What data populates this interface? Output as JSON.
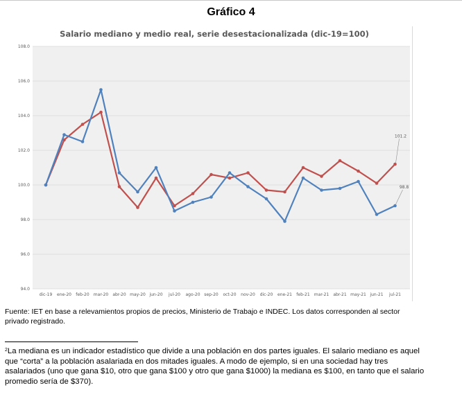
{
  "page_title": "Gráfico 4",
  "chart_data": {
    "type": "line",
    "title": "Salario mediano y medio real, serie desestacionalizada (dic-19=100)",
    "xlabel": "",
    "ylabel": "",
    "categories": [
      "dic-19",
      "ene-20",
      "feb-20",
      "mar-20",
      "abr-20",
      "may-20",
      "jun-20",
      "jul-20",
      "ago-20",
      "sep-20",
      "oct-20",
      "nov-20",
      "dic-20",
      "ene-21",
      "feb-21",
      "mar-21",
      "abr-21",
      "may-21",
      "jun-21",
      "jul-21"
    ],
    "ylim": [
      94.0,
      108.0
    ],
    "yticks": [
      "94.0",
      "96.0",
      "98.0",
      "100.0",
      "102.0",
      "104.0",
      "106.0",
      "108.0"
    ],
    "grid": true,
    "legend": "none",
    "series": [
      {
        "color": "#c0504d",
        "values": [
          100.0,
          102.6,
          103.5,
          104.2,
          99.9,
          98.7,
          100.4,
          98.8,
          99.5,
          100.6,
          100.4,
          100.7,
          99.7,
          99.6,
          101.0,
          100.5,
          101.4,
          100.8,
          100.1,
          101.2
        ]
      },
      {
        "color": "#4f81bd",
        "values": [
          100.0,
          102.9,
          102.5,
          105.5,
          100.7,
          99.6,
          101.0,
          98.5,
          99.0,
          99.3,
          100.7,
          99.9,
          99.2,
          97.9,
          100.4,
          99.7,
          99.8,
          100.2,
          98.3,
          98.8
        ]
      }
    ],
    "annotations": [
      {
        "series": 0,
        "index": 19,
        "text": "101.2"
      },
      {
        "series": 1,
        "index": 19,
        "text": "98.8"
      }
    ]
  },
  "source_note": "Fuente: IET en base a relevamientos propios de precios, Ministerio de Trabajo e INDEC. Los datos corresponden al sector privado registrado.",
  "footnote": {
    "marker": "2",
    "text": "La mediana es un indicador estadístico que divide a una población en dos partes iguales. El salario mediano es aquel que “corta” a la población asalariada en dos mitades iguales. A modo de ejemplo, si en una sociedad hay tres asalariados (uno que gana $10, otro que gana $100 y otro que gana $1000) la mediana es $100, en tanto que el salario promedio sería de $370)."
  }
}
